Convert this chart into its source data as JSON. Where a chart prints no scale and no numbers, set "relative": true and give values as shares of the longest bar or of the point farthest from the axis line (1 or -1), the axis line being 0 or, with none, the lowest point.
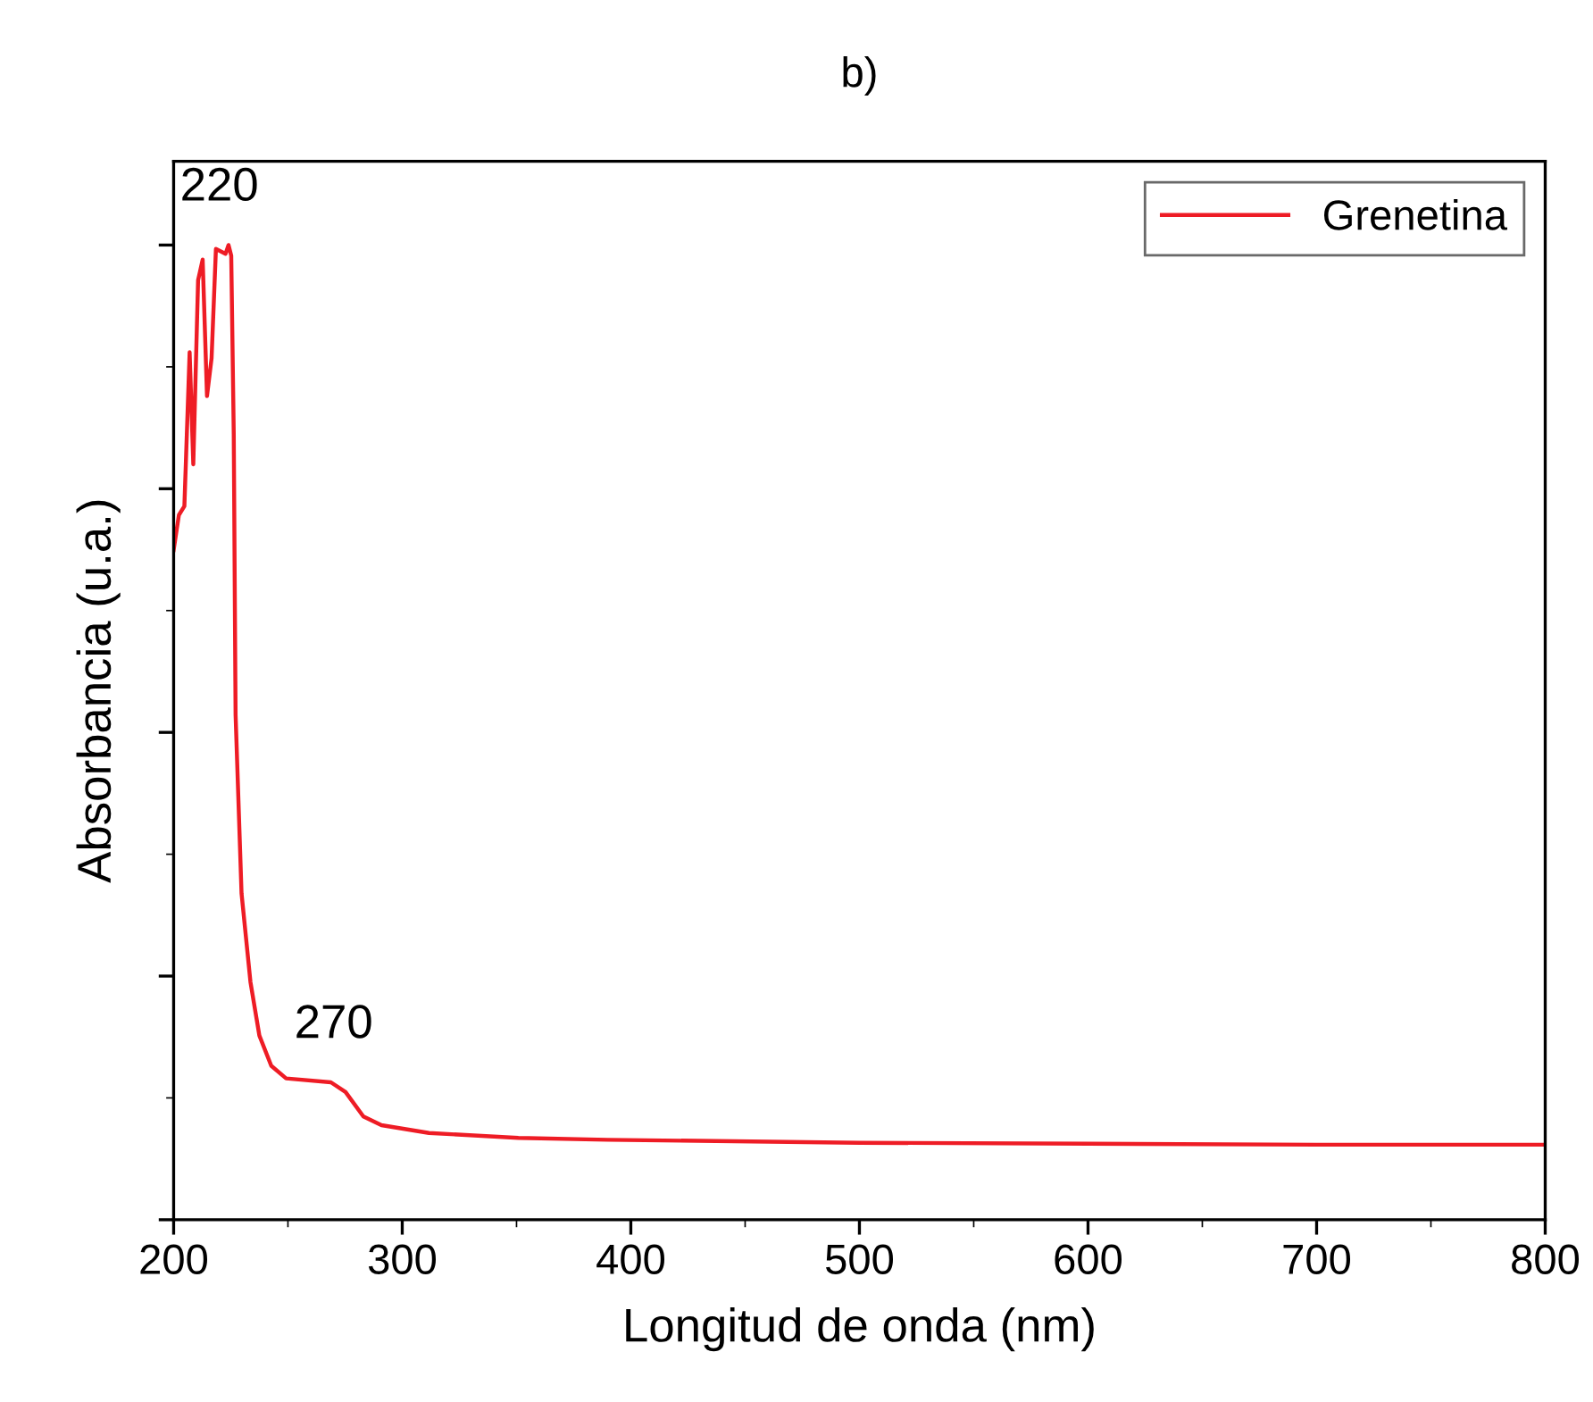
{
  "chart_data": {
    "type": "line",
    "title": "b)",
    "xlabel": "Longitud de onda (nm)",
    "ylabel": "Absorbancia (u.a.)",
    "relative": true,
    "xlim": [
      200,
      800
    ],
    "xticks": [
      200,
      300,
      400,
      500,
      600,
      700,
      800
    ],
    "legend": "top right",
    "grid": false,
    "series": [
      {
        "name": "Grenetina",
        "color": "#ee1c25",
        "x": [
          200,
          202.3,
          204.7,
          207.0,
          208.6,
          210.7,
          212.7,
          214.6,
          216.6,
          218.5,
          222.7,
          224.0,
          225.2,
          226.3,
          227.1,
          229.7,
          233.6,
          237.5,
          242.7,
          249.2,
          268.8,
          275.2,
          283.0,
          290.9,
          311.7,
          350.8,
          389.8,
          500,
          600,
          700,
          800
        ],
        "values": [
          0.687,
          0.723,
          0.732,
          0.89,
          0.775,
          0.964,
          0.985,
          0.845,
          0.884,
          0.996,
          0.991,
          1.0,
          0.989,
          0.806,
          0.518,
          0.335,
          0.244,
          0.189,
          0.158,
          0.145,
          0.141,
          0.131,
          0.106,
          0.097,
          0.089,
          0.084,
          0.082,
          0.079,
          0.078,
          0.077,
          0.077
        ]
      }
    ],
    "annotations": [
      {
        "text": "220",
        "x": 220,
        "y": 1.0
      },
      {
        "text": "270",
        "x": 270,
        "y": 0.141
      }
    ]
  }
}
